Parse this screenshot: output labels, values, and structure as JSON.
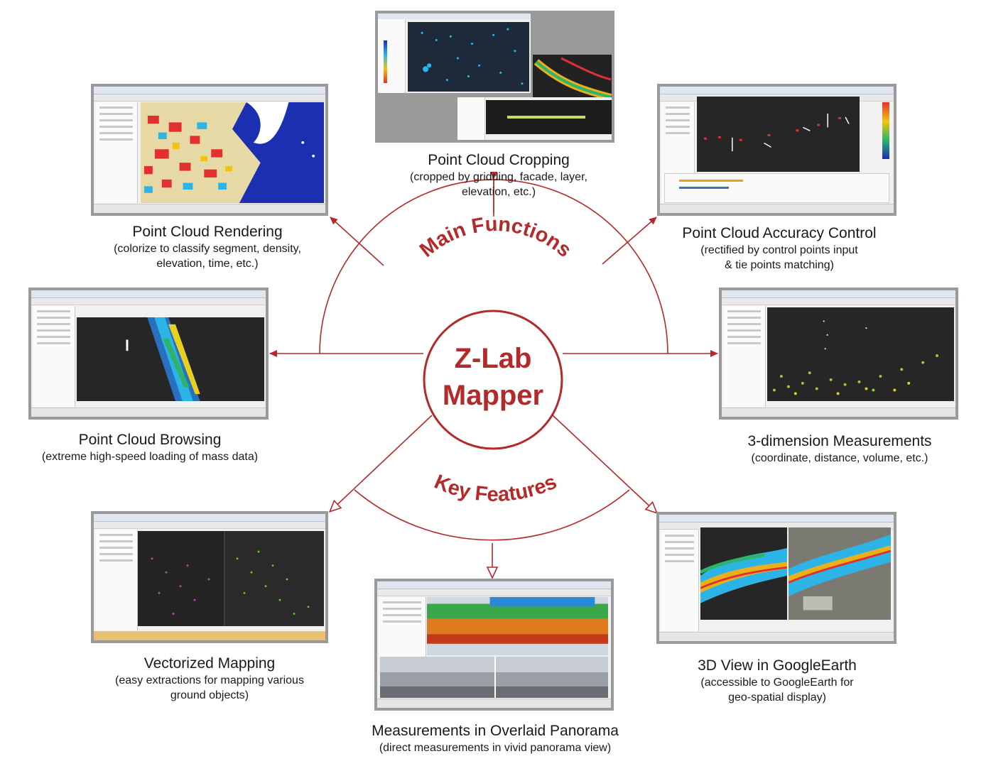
{
  "center": {
    "line1": "Z-Lab",
    "line2": "Mapper"
  },
  "arc_labels": {
    "top": "Main Functions",
    "bottom": "Key Features"
  },
  "colors": {
    "accent": "#b22a2a",
    "frame": "#9a9a9a",
    "view_dark": "#262626"
  },
  "items": [
    {
      "id": "rendering",
      "title": "Point Cloud Rendering",
      "subtitle_lines": [
        "(colorize to classify segment, density,",
        "elevation, time, etc.)"
      ]
    },
    {
      "id": "cropping",
      "title": "Point Cloud Cropping",
      "subtitle_lines": [
        "(cropped by gridding, facade, layer,",
        "elevation, etc.)"
      ]
    },
    {
      "id": "accuracy",
      "title": "Point Cloud Accuracy Control",
      "subtitle_lines": [
        "(rectified by control points input",
        "& tie points matching)"
      ]
    },
    {
      "id": "browsing",
      "title": "Point Cloud Browsing",
      "subtitle_lines": [
        "(extreme high-speed loading of mass data)"
      ]
    },
    {
      "id": "measurements3d",
      "title": "3-dimension Measurements",
      "subtitle_lines": [
        "(coordinate, distance, volume, etc.)"
      ]
    },
    {
      "id": "vectorized",
      "title": "Vectorized Mapping",
      "subtitle_lines": [
        "(easy extractions for mapping various",
        "ground objects)"
      ]
    },
    {
      "id": "panorama",
      "title": "Measurements in Overlaid Panorama",
      "subtitle_lines": [
        "(direct measurements in vivid panorama view)"
      ]
    },
    {
      "id": "googleearth",
      "title": "3D View in GoogleEarth",
      "subtitle_lines": [
        "(accessible to GoogleEarth for",
        "geo-spatial display)"
      ]
    }
  ]
}
